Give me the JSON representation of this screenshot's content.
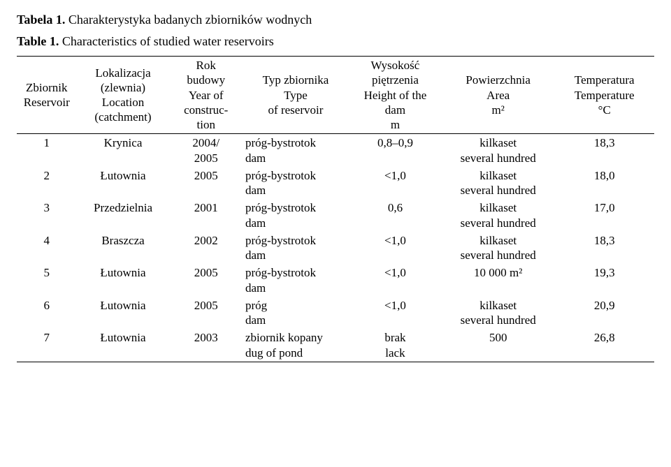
{
  "titles": {
    "pl_bold": "Tabela 1.",
    "pl_rest": " Charakterystyka badanych zbiorników wodnych",
    "en_bold": "Table 1.",
    "en_rest": " Characteristics of studied water reservoirs"
  },
  "headers": {
    "c1a": "Zbiornik",
    "c1b": "Reservoir",
    "c2a": "Lokalizacja",
    "c2b": "(zlewnia)",
    "c2c": "Location",
    "c2d": "(catchment)",
    "c3a": "Rok",
    "c3b": "budowy",
    "c3c": "Year of",
    "c3d": "construc-",
    "c3e": "tion",
    "c4a": "Typ zbiornika",
    "c4b": "Type",
    "c4c": "of reservoir",
    "c5a": "Wysokość",
    "c5b": "piętrzenia",
    "c5c": "Height of the",
    "c5d": "dam",
    "c5e": "m",
    "c6a": "Powierzchnia",
    "c6b": "Area",
    "c6c": "m²",
    "c7a": "Temperatura",
    "c7b": "Temperature",
    "c7c": "°C"
  },
  "rows": [
    {
      "n": "1",
      "loc": "Krynica",
      "yr1": "2004/",
      "yr2": "2005",
      "t1": "próg-bystrotok",
      "t2": "dam",
      "h": "0,8–0,9",
      "a1": "kilkaset",
      "a2": "several hundred",
      "temp": "18,3"
    },
    {
      "n": "2",
      "loc": "Łutownia",
      "yr1": "2005",
      "yr2": "",
      "t1": "próg-bystrotok",
      "t2": "dam",
      "h": "<1,0",
      "a1": "kilkaset",
      "a2": "several hundred",
      "temp": "18,0"
    },
    {
      "n": "3",
      "loc": "Przedzielnia",
      "yr1": "2001",
      "yr2": "",
      "t1": "próg-bystrotok",
      "t2": "dam",
      "h": "0,6",
      "a1": "kilkaset",
      "a2": "several hundred",
      "temp": "17,0"
    },
    {
      "n": "4",
      "loc": "Braszcza",
      "yr1": "2002",
      "yr2": "",
      "t1": "próg-bystrotok",
      "t2": "dam",
      "h": "<1,0",
      "a1": "kilkaset",
      "a2": "several hundred",
      "temp": "18,3"
    },
    {
      "n": "5",
      "loc": "Łutownia",
      "yr1": "2005",
      "yr2": "",
      "t1": "próg-bystrotok",
      "t2": "dam",
      "h": "<1,0",
      "a1": "10 000 m²",
      "a2": "",
      "temp": "19,3"
    },
    {
      "n": "6",
      "loc": "Łutownia",
      "yr1": "2005",
      "yr2": "",
      "t1": "próg",
      "t2": "dam",
      "h": "<1,0",
      "a1": "kilkaset",
      "a2": "several hundred",
      "temp": "20,9"
    },
    {
      "n": "7",
      "loc": "Łutownia",
      "yr1": "2003",
      "yr2": "",
      "t1": "zbiornik kopany",
      "t2": "dug of pond",
      "h1": "brak",
      "h2": "lack",
      "a1": "500",
      "a2": "",
      "temp": "26,8"
    }
  ]
}
